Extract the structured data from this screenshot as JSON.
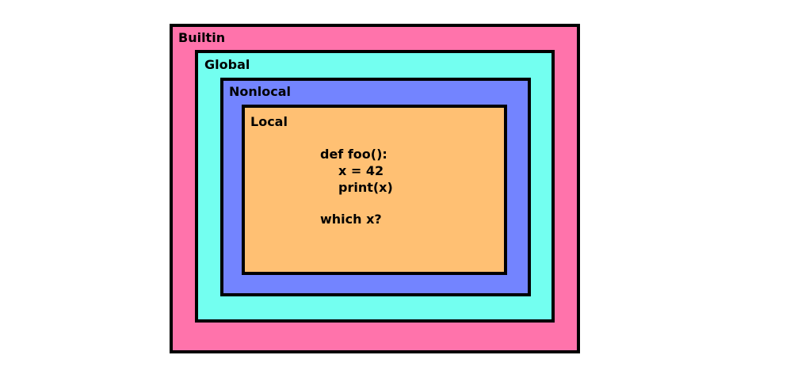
{
  "scopes": {
    "builtin": {
      "label": "Builtin",
      "color": "#ff73ab"
    },
    "global": {
      "label": "Global",
      "color": "#73fff0"
    },
    "nonlocal": {
      "label": "Nonlocal",
      "color": "#7384ff"
    },
    "local": {
      "label": "Local",
      "color": "#ffc073"
    }
  },
  "code": {
    "lines": [
      "def foo():",
      "x = 42",
      "print(x)"
    ],
    "question": "which x?"
  }
}
